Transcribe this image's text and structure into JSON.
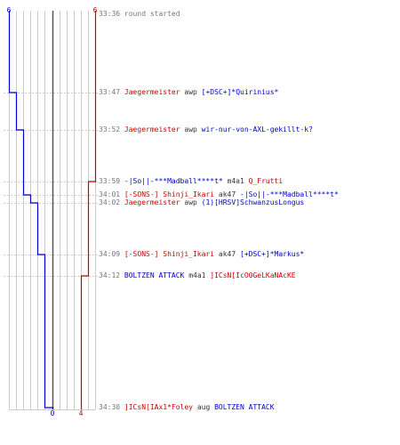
{
  "colors": {
    "team_a": "#0000cc",
    "team_b": "#cc0000",
    "neutral": "#777777",
    "grid": "#cccccc",
    "center_line": "#555555"
  },
  "scores": {
    "team_a_start": "6",
    "team_b_start": "6",
    "team_a_end": "0",
    "team_b_end": "4"
  },
  "events": [
    {
      "time": "33:36",
      "text": "round started",
      "kind": "system"
    },
    {
      "time": "33:47",
      "killer": "Jaegermeister",
      "killer_team": "b",
      "weapon": "awp",
      "victim": "[+DSC+]*Quirinius*",
      "victim_team": "a"
    },
    {
      "time": "33:52",
      "killer": "Jaegermeister",
      "killer_team": "b",
      "weapon": "awp",
      "victim": "wir-nur-von-AXL-gekillt-k?",
      "victim_team": "a"
    },
    {
      "time": "33:59",
      "killer": "-|So||-***Madball****t*",
      "killer_team": "a",
      "weapon": "m4a1",
      "victim": "Q_Frutti",
      "victim_team": "b"
    },
    {
      "time": "34:01",
      "killer": "[-SONS-] Shinji_Ikari",
      "killer_team": "b",
      "weapon": "ak47",
      "victim": "-|So||-***Madball****t*",
      "victim_team": "a"
    },
    {
      "time": "34:02",
      "killer": "Jaegermeister",
      "killer_team": "b",
      "weapon": "awp",
      "victim": "(1)[HRSV]SchwanzusLongus",
      "victim_team": "a"
    },
    {
      "time": "34:09",
      "killer": "[-SONS-] Shinji_Ikari",
      "killer_team": "b",
      "weapon": "ak47",
      "victim": "[+DSC+]*Markus*",
      "victim_team": "a"
    },
    {
      "time": "34:12",
      "killer": "BOLTZEN ATTACK",
      "killer_team": "a",
      "weapon": "m4a1",
      "victim": "]ICsN[IcO0GeLKaNAcKE",
      "victim_team": "b"
    },
    {
      "time": "34:30",
      "killer": "]ICsN[IAx1*Foley",
      "killer_team": "b",
      "weapon": "aug",
      "victim": "BOLTZEN ATTACK",
      "victim_team": "a"
    }
  ]
}
